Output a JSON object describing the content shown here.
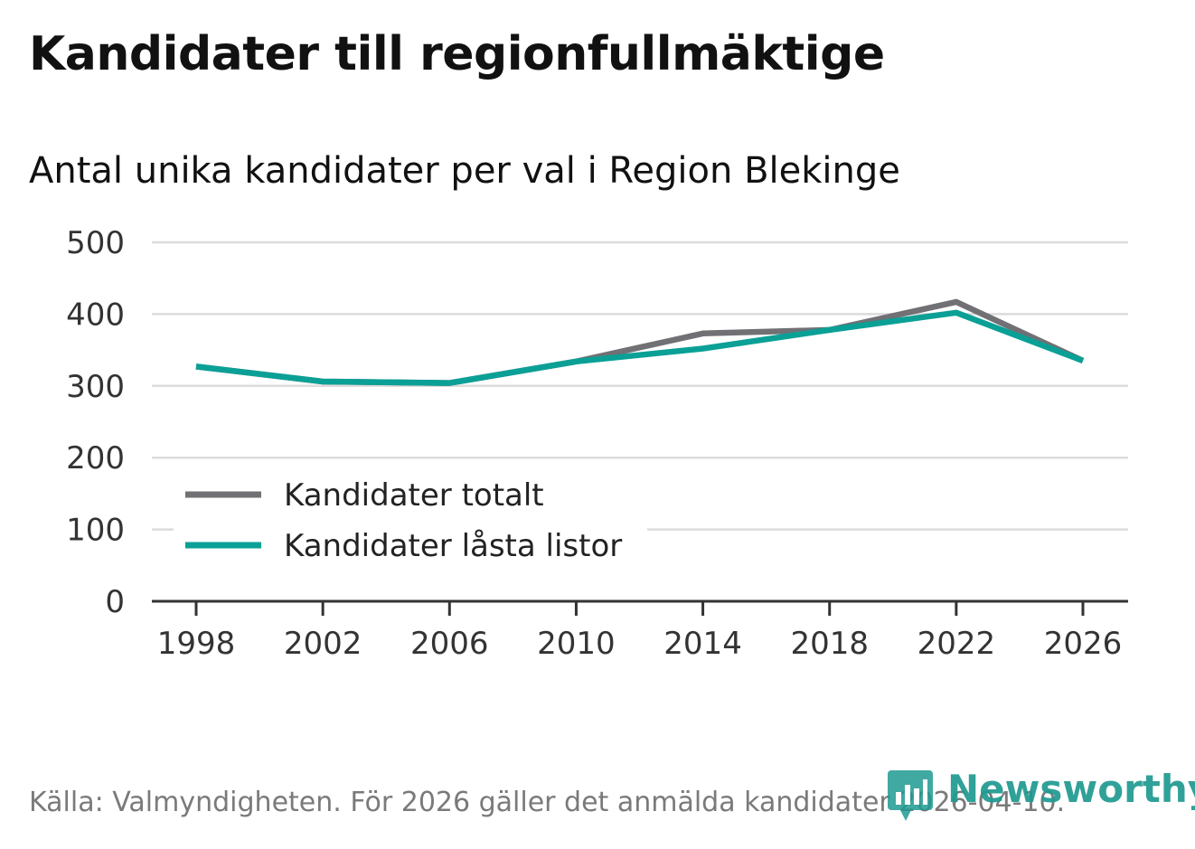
{
  "title": "Kandidater till regionfullmäktige",
  "subtitle": "Antal unika kandidater per val i Region Blekinge",
  "footer": "Källa: Valmyndigheten. För 2026 gäller det anmälda kandidater 2026-04-10.",
  "logo": {
    "text": "Newsworthy",
    "icon": "newsworthy-logo-icon"
  },
  "colors": {
    "series_total": "#707075",
    "series_locked": "#0aa096",
    "grid": "#dcdcdc",
    "axis": "#333333",
    "brand": "#1f9a90"
  },
  "chart_data": {
    "type": "line",
    "title": "Kandidater till regionfullmäktige",
    "subtitle": "Antal unika kandidater per val i Region Blekinge",
    "xlabel": "",
    "ylabel": "",
    "x": [
      1998,
      2002,
      2006,
      2010,
      2014,
      2018,
      2022,
      2026
    ],
    "x_tick_labels": [
      "1998",
      "2002",
      "2006",
      "2010",
      "2014",
      "2018",
      "2022",
      "2026"
    ],
    "ylim": [
      0,
      500
    ],
    "y_ticks": [
      0,
      100,
      200,
      300,
      400,
      500
    ],
    "y_tick_labels": [
      "0",
      "100",
      "200",
      "300",
      "400",
      "500"
    ],
    "grid": true,
    "legend_position": "bottom-left",
    "series": [
      {
        "name": "Kandidater totalt",
        "values": [
          327,
          306,
          304,
          334,
          373,
          378,
          417,
          335
        ]
      },
      {
        "name": "Kandidater låsta listor",
        "values": [
          327,
          306,
          304,
          334,
          352,
          378,
          402,
          335
        ]
      }
    ]
  }
}
